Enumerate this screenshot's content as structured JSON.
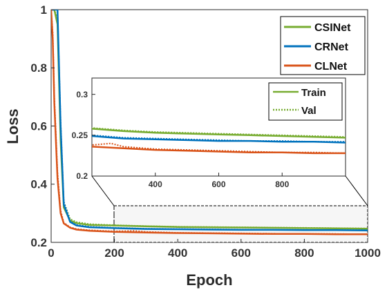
{
  "chart_data": {
    "type": "line",
    "xlabel": "Epoch",
    "ylabel": "Loss",
    "xlim": [
      0,
      1000
    ],
    "ylim": [
      0.2,
      1.0
    ],
    "xticks": [
      "0",
      "200",
      "400",
      "600",
      "800",
      "1000"
    ],
    "yticks": [
      "0.2",
      "0.4",
      "0.6",
      "0.8",
      "1"
    ],
    "legend_position": "top-right",
    "series": [
      {
        "name": "CSINet",
        "color": "#77ac30",
        "train": {
          "x": [
            0,
            10,
            20,
            30,
            40,
            60,
            80,
            120,
            200,
            300,
            400,
            500,
            600,
            700,
            800,
            900,
            1000
          ],
          "y": [
            1.0,
            1.0,
            0.95,
            0.55,
            0.32,
            0.275,
            0.266,
            0.26,
            0.258,
            0.255,
            0.253,
            0.252,
            0.251,
            0.25,
            0.249,
            0.248,
            0.247
          ]
        },
        "val": {
          "x": [
            0,
            10,
            20,
            30,
            40,
            60,
            80,
            120,
            200,
            300,
            400,
            500,
            600,
            700,
            800,
            900,
            1000
          ],
          "y": [
            1.0,
            1.0,
            0.97,
            0.58,
            0.34,
            0.28,
            0.27,
            0.263,
            0.259,
            0.256,
            0.254,
            0.253,
            0.252,
            0.251,
            0.25,
            0.249,
            0.248
          ]
        }
      },
      {
        "name": "CRNet",
        "color": "#0072bd",
        "train": {
          "x": [
            0,
            10,
            20,
            30,
            40,
            60,
            80,
            120,
            200,
            300,
            400,
            500,
            600,
            700,
            800,
            900,
            1000
          ],
          "y": [
            1.0,
            1.0,
            1.0,
            0.6,
            0.33,
            0.27,
            0.258,
            0.252,
            0.249,
            0.246,
            0.245,
            0.244,
            0.243,
            0.243,
            0.242,
            0.242,
            0.241
          ]
        },
        "val": {
          "x": [
            0,
            10,
            20,
            30,
            40,
            60,
            80,
            120,
            200,
            300,
            400,
            500,
            600,
            700,
            800,
            900,
            1000
          ],
          "y": [
            1.0,
            1.0,
            1.0,
            0.62,
            0.34,
            0.272,
            0.26,
            0.254,
            0.25,
            0.247,
            0.246,
            0.245,
            0.244,
            0.243,
            0.243,
            0.242,
            0.242
          ]
        }
      },
      {
        "name": "CLNet",
        "color": "#d95319",
        "train": {
          "x": [
            0,
            5,
            10,
            20,
            30,
            40,
            60,
            80,
            120,
            200,
            300,
            400,
            500,
            600,
            700,
            800,
            900,
            1000
          ],
          "y": [
            1.0,
            0.9,
            0.68,
            0.42,
            0.3,
            0.265,
            0.25,
            0.244,
            0.24,
            0.236,
            0.234,
            0.232,
            0.231,
            0.23,
            0.229,
            0.229,
            0.228,
            0.228
          ]
        },
        "val": {
          "x": [
            0,
            5,
            10,
            20,
            30,
            40,
            60,
            80,
            120,
            200,
            260,
            300,
            400,
            500,
            600,
            700,
            800,
            900,
            1000
          ],
          "y": [
            1.0,
            0.92,
            0.7,
            0.44,
            0.31,
            0.268,
            0.252,
            0.246,
            0.242,
            0.238,
            0.24,
            0.236,
            0.233,
            0.232,
            0.231,
            0.23,
            0.229,
            0.229,
            0.228
          ]
        }
      }
    ],
    "inset": {
      "xlim": [
        200,
        1000
      ],
      "ylim": [
        0.2,
        0.32
      ],
      "xticks": [
        "400",
        "600",
        "800"
      ],
      "yticks": [
        "0.2",
        "0.25",
        "0.3"
      ],
      "legend": [
        {
          "name": "Train",
          "style": "solid"
        },
        {
          "name": "Val",
          "style": "dotted"
        }
      ],
      "legend_color": "#77ac30"
    },
    "grid": false
  }
}
